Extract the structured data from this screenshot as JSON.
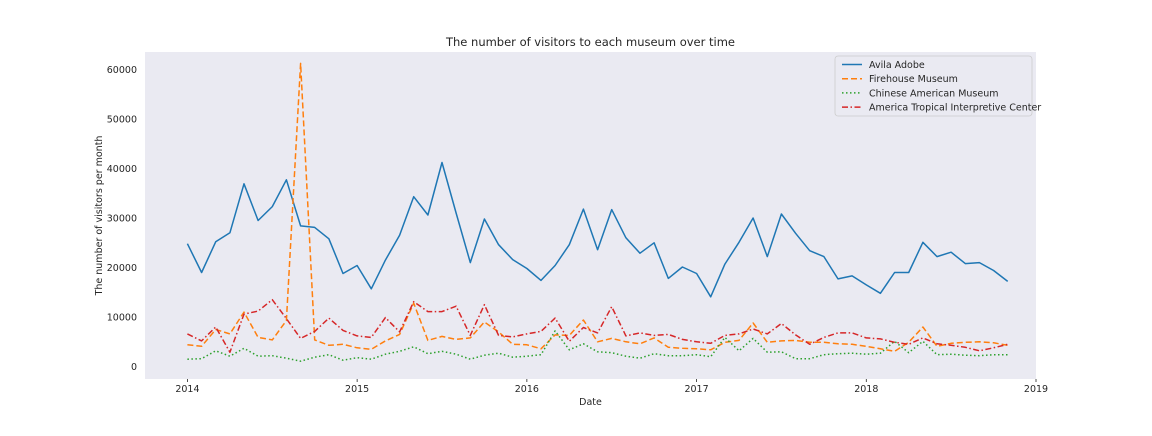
{
  "chart_data": {
    "type": "line",
    "title": "The number of visitors to each museum over time",
    "xlabel": "Date",
    "ylabel": "The number of visitors per month",
    "x_ticks": [
      "2014",
      "2015",
      "2016",
      "2017",
      "2018",
      "2019"
    ],
    "y_ticks": [
      "0",
      "10000",
      "20000",
      "30000",
      "40000",
      "50000",
      "60000"
    ],
    "xlim": [
      "2013-10",
      "2019-01"
    ],
    "ylim": [
      -2500,
      63500
    ],
    "grid": false,
    "legend_position": "top-right",
    "x": [
      "2014-01",
      "2014-02",
      "2014-03",
      "2014-04",
      "2014-05",
      "2014-06",
      "2014-07",
      "2014-08",
      "2014-09",
      "2014-10",
      "2014-11",
      "2014-12",
      "2015-01",
      "2015-02",
      "2015-03",
      "2015-04",
      "2015-05",
      "2015-06",
      "2015-07",
      "2015-08",
      "2015-09",
      "2015-10",
      "2015-11",
      "2015-12",
      "2016-01",
      "2016-02",
      "2016-03",
      "2016-04",
      "2016-05",
      "2016-06",
      "2016-07",
      "2016-08",
      "2016-09",
      "2016-10",
      "2016-11",
      "2016-12",
      "2017-01",
      "2017-02",
      "2017-03",
      "2017-04",
      "2017-05",
      "2017-06",
      "2017-07",
      "2017-08",
      "2017-09",
      "2017-10",
      "2017-11",
      "2017-12",
      "2018-01",
      "2018-02",
      "2018-03",
      "2018-04",
      "2018-05",
      "2018-06",
      "2018-07",
      "2018-08",
      "2018-09",
      "2018-10",
      "2018-11"
    ],
    "series": [
      {
        "name": "Avila Adobe",
        "color": "#1f77b4",
        "dash": "solid",
        "values": [
          24800,
          19000,
          25200,
          27000,
          36900,
          29500,
          32300,
          37700,
          28400,
          28100,
          25800,
          18800,
          20400,
          15700,
          21500,
          26500,
          34300,
          30600,
          41200,
          31000,
          21000,
          29800,
          24600,
          21600,
          19800,
          17400,
          20400,
          24600,
          31800,
          23600,
          31700,
          26000,
          22900,
          25000,
          17800,
          20100,
          18800,
          14100,
          20700,
          25100,
          30000,
          22200,
          30800,
          26900,
          23400,
          22200,
          17700,
          18300,
          16500,
          14800,
          19000,
          19000,
          25100,
          22200,
          23100,
          20800,
          21000,
          19400,
          17200
        ]
      },
      {
        "name": "Firehouse Museum",
        "color": "#ff7f0e",
        "dash": "dashed",
        "values": [
          4400,
          4100,
          7500,
          6600,
          11000,
          5900,
          5400,
          9300,
          61200,
          5400,
          4300,
          4500,
          3800,
          3500,
          5200,
          6500,
          12800,
          5300,
          6100,
          5500,
          5800,
          9000,
          7000,
          4500,
          4400,
          3600,
          6400,
          6300,
          9400,
          5000,
          5700,
          5000,
          4600,
          5800,
          3900,
          3700,
          3600,
          3400,
          4900,
          5300,
          8800,
          4900,
          5200,
          5300,
          4900,
          4900,
          4600,
          4500,
          4100,
          3600,
          3100,
          4900,
          8000,
          4100,
          4700,
          4900,
          5000,
          4800,
          4300
        ]
      },
      {
        "name": "Chinese American Museum",
        "color": "#2ca02c",
        "dash": "dotted",
        "values": [
          1500,
          1600,
          3200,
          2100,
          3700,
          2100,
          2200,
          1700,
          1100,
          1900,
          2400,
          1300,
          1800,
          1500,
          2500,
          3100,
          4000,
          2600,
          3100,
          2500,
          1500,
          2300,
          2700,
          1900,
          2100,
          2400,
          7200,
          3400,
          4600,
          3000,
          2800,
          2100,
          1700,
          2600,
          2200,
          2200,
          2400,
          2000,
          5900,
          3200,
          5700,
          2900,
          3000,
          1600,
          1600,
          2400,
          2600,
          2700,
          2500,
          2700,
          5100,
          2800,
          5100,
          2400,
          2500,
          2300,
          2200,
          2400,
          2400
        ]
      },
      {
        "name": "America Tropical Interpretive Center",
        "color": "#d62728",
        "dash": "dashdot",
        "values": [
          6600,
          5200,
          8000,
          2900,
          10600,
          11200,
          13500,
          9700,
          5700,
          7100,
          9800,
          7300,
          6200,
          5900,
          9900,
          7000,
          13100,
          11100,
          11100,
          12200,
          6300,
          12500,
          6300,
          6000,
          6600,
          7100,
          9800,
          5100,
          7900,
          6800,
          12100,
          6200,
          6800,
          6300,
          6500,
          5500,
          5000,
          4700,
          6300,
          6600,
          7600,
          6600,
          8700,
          6400,
          4500,
          5900,
          6800,
          6800,
          5800,
          5600,
          4900,
          4500,
          5800,
          4600,
          4300,
          3900,
          3200,
          3800,
          4500
        ]
      }
    ]
  }
}
